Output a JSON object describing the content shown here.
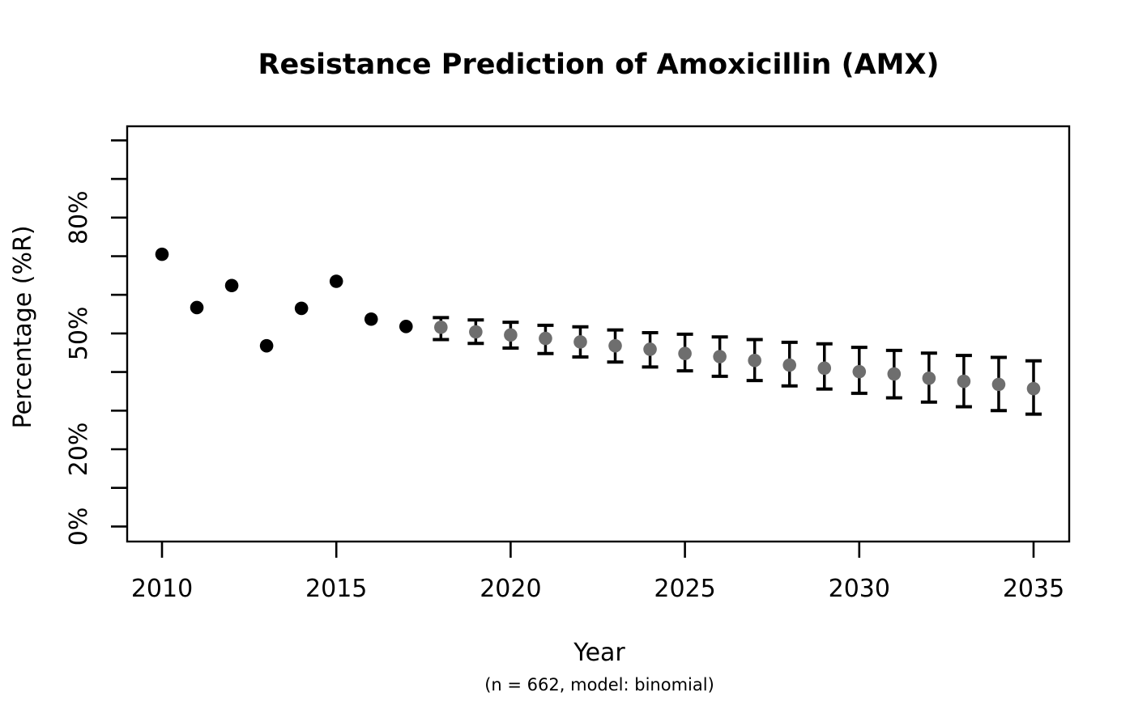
{
  "chart_data": {
    "type": "scatter",
    "title": "Resistance Prediction of Amoxicillin (AMX)",
    "xlabel": "Year",
    "sub_label": "(n = 662, model: binomial)",
    "ylabel": "Percentage (%R)",
    "grid": false,
    "legend": null,
    "colors": {
      "background": "#ffffff",
      "text": "#000000",
      "observed_point": "#000000",
      "predicted_point": "#6e6e6e",
      "error_bar": "#000000"
    },
    "x_axis": {
      "range": [
        2009,
        2036
      ],
      "ticks": [
        {
          "value": 2010,
          "label": "2010"
        },
        {
          "value": 2015,
          "label": "2015"
        },
        {
          "value": 2020,
          "label": "2020"
        },
        {
          "value": 2025,
          "label": "2025"
        },
        {
          "value": 2030,
          "label": "2030"
        },
        {
          "value": 2035,
          "label": "2035"
        }
      ]
    },
    "y_axis": {
      "range": [
        0,
        100
      ],
      "minor_tick_step": 10,
      "labeled_ticks": [
        {
          "value": 0,
          "label": "0%"
        },
        {
          "value": 20,
          "label": "20%"
        },
        {
          "value": 50,
          "label": "50%"
        },
        {
          "value": 80,
          "label": "80%"
        }
      ]
    },
    "series": [
      {
        "name": "observed",
        "type": "points",
        "color": "#000000",
        "points": [
          {
            "year": 2010,
            "value": 70.5
          },
          {
            "year": 2011,
            "value": 56.7
          },
          {
            "year": 2012,
            "value": 62.4
          },
          {
            "year": 2013,
            "value": 46.8
          },
          {
            "year": 2014,
            "value": 56.5
          },
          {
            "year": 2015,
            "value": 63.5
          },
          {
            "year": 2016,
            "value": 53.7
          },
          {
            "year": 2017,
            "value": 51.8
          }
        ]
      },
      {
        "name": "predicted",
        "type": "points_with_ci",
        "color": "#6e6e6e",
        "error_bar_color": "#000000",
        "points": [
          {
            "year": 2018,
            "value": 51.6,
            "ci_low": 48.4,
            "ci_high": 54.1
          },
          {
            "year": 2019,
            "value": 50.4,
            "ci_low": 47.4,
            "ci_high": 53.5
          },
          {
            "year": 2020,
            "value": 49.6,
            "ci_low": 46.2,
            "ci_high": 52.9
          },
          {
            "year": 2021,
            "value": 48.7,
            "ci_low": 44.8,
            "ci_high": 52.1
          },
          {
            "year": 2022,
            "value": 47.8,
            "ci_low": 43.9,
            "ci_high": 51.7
          },
          {
            "year": 2023,
            "value": 46.8,
            "ci_low": 42.6,
            "ci_high": 50.9
          },
          {
            "year": 2024,
            "value": 45.9,
            "ci_low": 41.3,
            "ci_high": 50.2
          },
          {
            "year": 2025,
            "value": 44.8,
            "ci_low": 40.3,
            "ci_high": 49.8
          },
          {
            "year": 2026,
            "value": 44.0,
            "ci_low": 38.9,
            "ci_high": 49.1
          },
          {
            "year": 2027,
            "value": 43.0,
            "ci_low": 37.8,
            "ci_high": 48.4
          },
          {
            "year": 2028,
            "value": 41.8,
            "ci_low": 36.4,
            "ci_high": 47.7
          },
          {
            "year": 2029,
            "value": 41.0,
            "ci_low": 35.6,
            "ci_high": 47.3
          },
          {
            "year": 2030,
            "value": 40.1,
            "ci_low": 34.5,
            "ci_high": 46.4
          },
          {
            "year": 2031,
            "value": 39.5,
            "ci_low": 33.3,
            "ci_high": 45.6
          },
          {
            "year": 2032,
            "value": 38.4,
            "ci_low": 32.2,
            "ci_high": 44.9
          },
          {
            "year": 2033,
            "value": 37.6,
            "ci_low": 31.0,
            "ci_high": 44.3
          },
          {
            "year": 2034,
            "value": 36.8,
            "ci_low": 30.0,
            "ci_high": 43.8
          },
          {
            "year": 2035,
            "value": 35.7,
            "ci_low": 29.1,
            "ci_high": 42.9
          }
        ]
      }
    ]
  }
}
